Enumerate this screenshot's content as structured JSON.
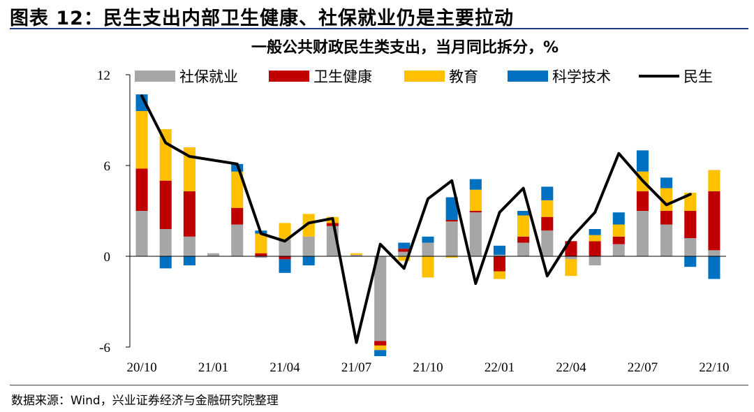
{
  "figure_title": "图表 12：民生支出内部卫生健康、社保就业仍是主要拉动",
  "source_note": "数据来源：Wind，兴业证券经济与金融研究院整理",
  "chart_data": {
    "type": "bar",
    "stacked": true,
    "title": "一般公共财政民生类支出，当月同比拆分，%",
    "xlabel": "",
    "ylabel": "",
    "ylim": [
      -6,
      12
    ],
    "yticks": [
      -6,
      0,
      6,
      12
    ],
    "x_tick_labels": [
      "20/10",
      "21/01",
      "21/04",
      "21/07",
      "21/10",
      "22/01",
      "22/04",
      "22/07",
      "22/10"
    ],
    "x_tick_every": 3,
    "categories": [
      "2020-10",
      "2020-11",
      "2020-12",
      "2021-01",
      "2021-02",
      "2021-03",
      "2021-04",
      "2021-05",
      "2021-06",
      "2021-07",
      "2021-08",
      "2021-09",
      "2021-10",
      "2021-11",
      "2021-12",
      "2022-01",
      "2022-02",
      "2022-03",
      "2022-04",
      "2022-05",
      "2022-06",
      "2022-07",
      "2022-08",
      "2022-09",
      "2022-10"
    ],
    "legend_position": "top",
    "series": [
      {
        "name": "社保就业",
        "kind": "bar",
        "color": "#a6a6a6",
        "values": [
          3.0,
          1.8,
          1.3,
          0.2,
          2.1,
          -0.1,
          1.1,
          1.3,
          2.0,
          0.1,
          -5.6,
          0.3,
          0.9,
          2.3,
          2.9,
          0.1,
          0.9,
          1.7,
          -0.2,
          -0.6,
          0.8,
          3.0,
          2.1,
          1.2,
          0.4
        ]
      },
      {
        "name": "卫生健康",
        "kind": "bar",
        "color": "#c00000",
        "values": [
          2.8,
          3.2,
          3.0,
          0.0,
          1.1,
          0.2,
          -0.2,
          0.0,
          0.2,
          0.0,
          -0.3,
          0.2,
          0.0,
          0.1,
          0.1,
          -1.0,
          0.4,
          0.9,
          1.0,
          1.0,
          0.5,
          1.3,
          0.9,
          1.8,
          3.9
        ]
      },
      {
        "name": "教育",
        "kind": "bar",
        "color": "#ffc000",
        "values": [
          3.8,
          3.4,
          2.9,
          0.0,
          2.4,
          1.3,
          1.1,
          1.5,
          0.4,
          0.1,
          -0.3,
          -0.3,
          -1.4,
          -0.1,
          1.4,
          -0.5,
          1.4,
          1.1,
          -1.1,
          0.4,
          0.8,
          1.3,
          1.5,
          1.2,
          1.4
        ]
      },
      {
        "name": "科学技术",
        "kind": "bar",
        "color": "#0070c0",
        "values": [
          1.1,
          -0.8,
          -0.6,
          0.0,
          0.5,
          0.2,
          -0.9,
          -0.6,
          0.0,
          0.0,
          -0.4,
          0.4,
          0.4,
          1.5,
          0.7,
          0.6,
          0.3,
          0.9,
          0.0,
          0.4,
          0.8,
          1.4,
          0.7,
          -0.7,
          -1.5
        ]
      },
      {
        "name": "民生",
        "kind": "line",
        "color": "#000000",
        "values": [
          10.6,
          7.5,
          6.6,
          null,
          6.1,
          1.5,
          1.0,
          2.2,
          2.5,
          -5.7,
          0.8,
          -0.8,
          3.8,
          5.0,
          -1.8,
          2.9,
          4.5,
          -1.3,
          1.2,
          2.9,
          6.8,
          5.0,
          3.4,
          4.1,
          null
        ]
      }
    ]
  }
}
